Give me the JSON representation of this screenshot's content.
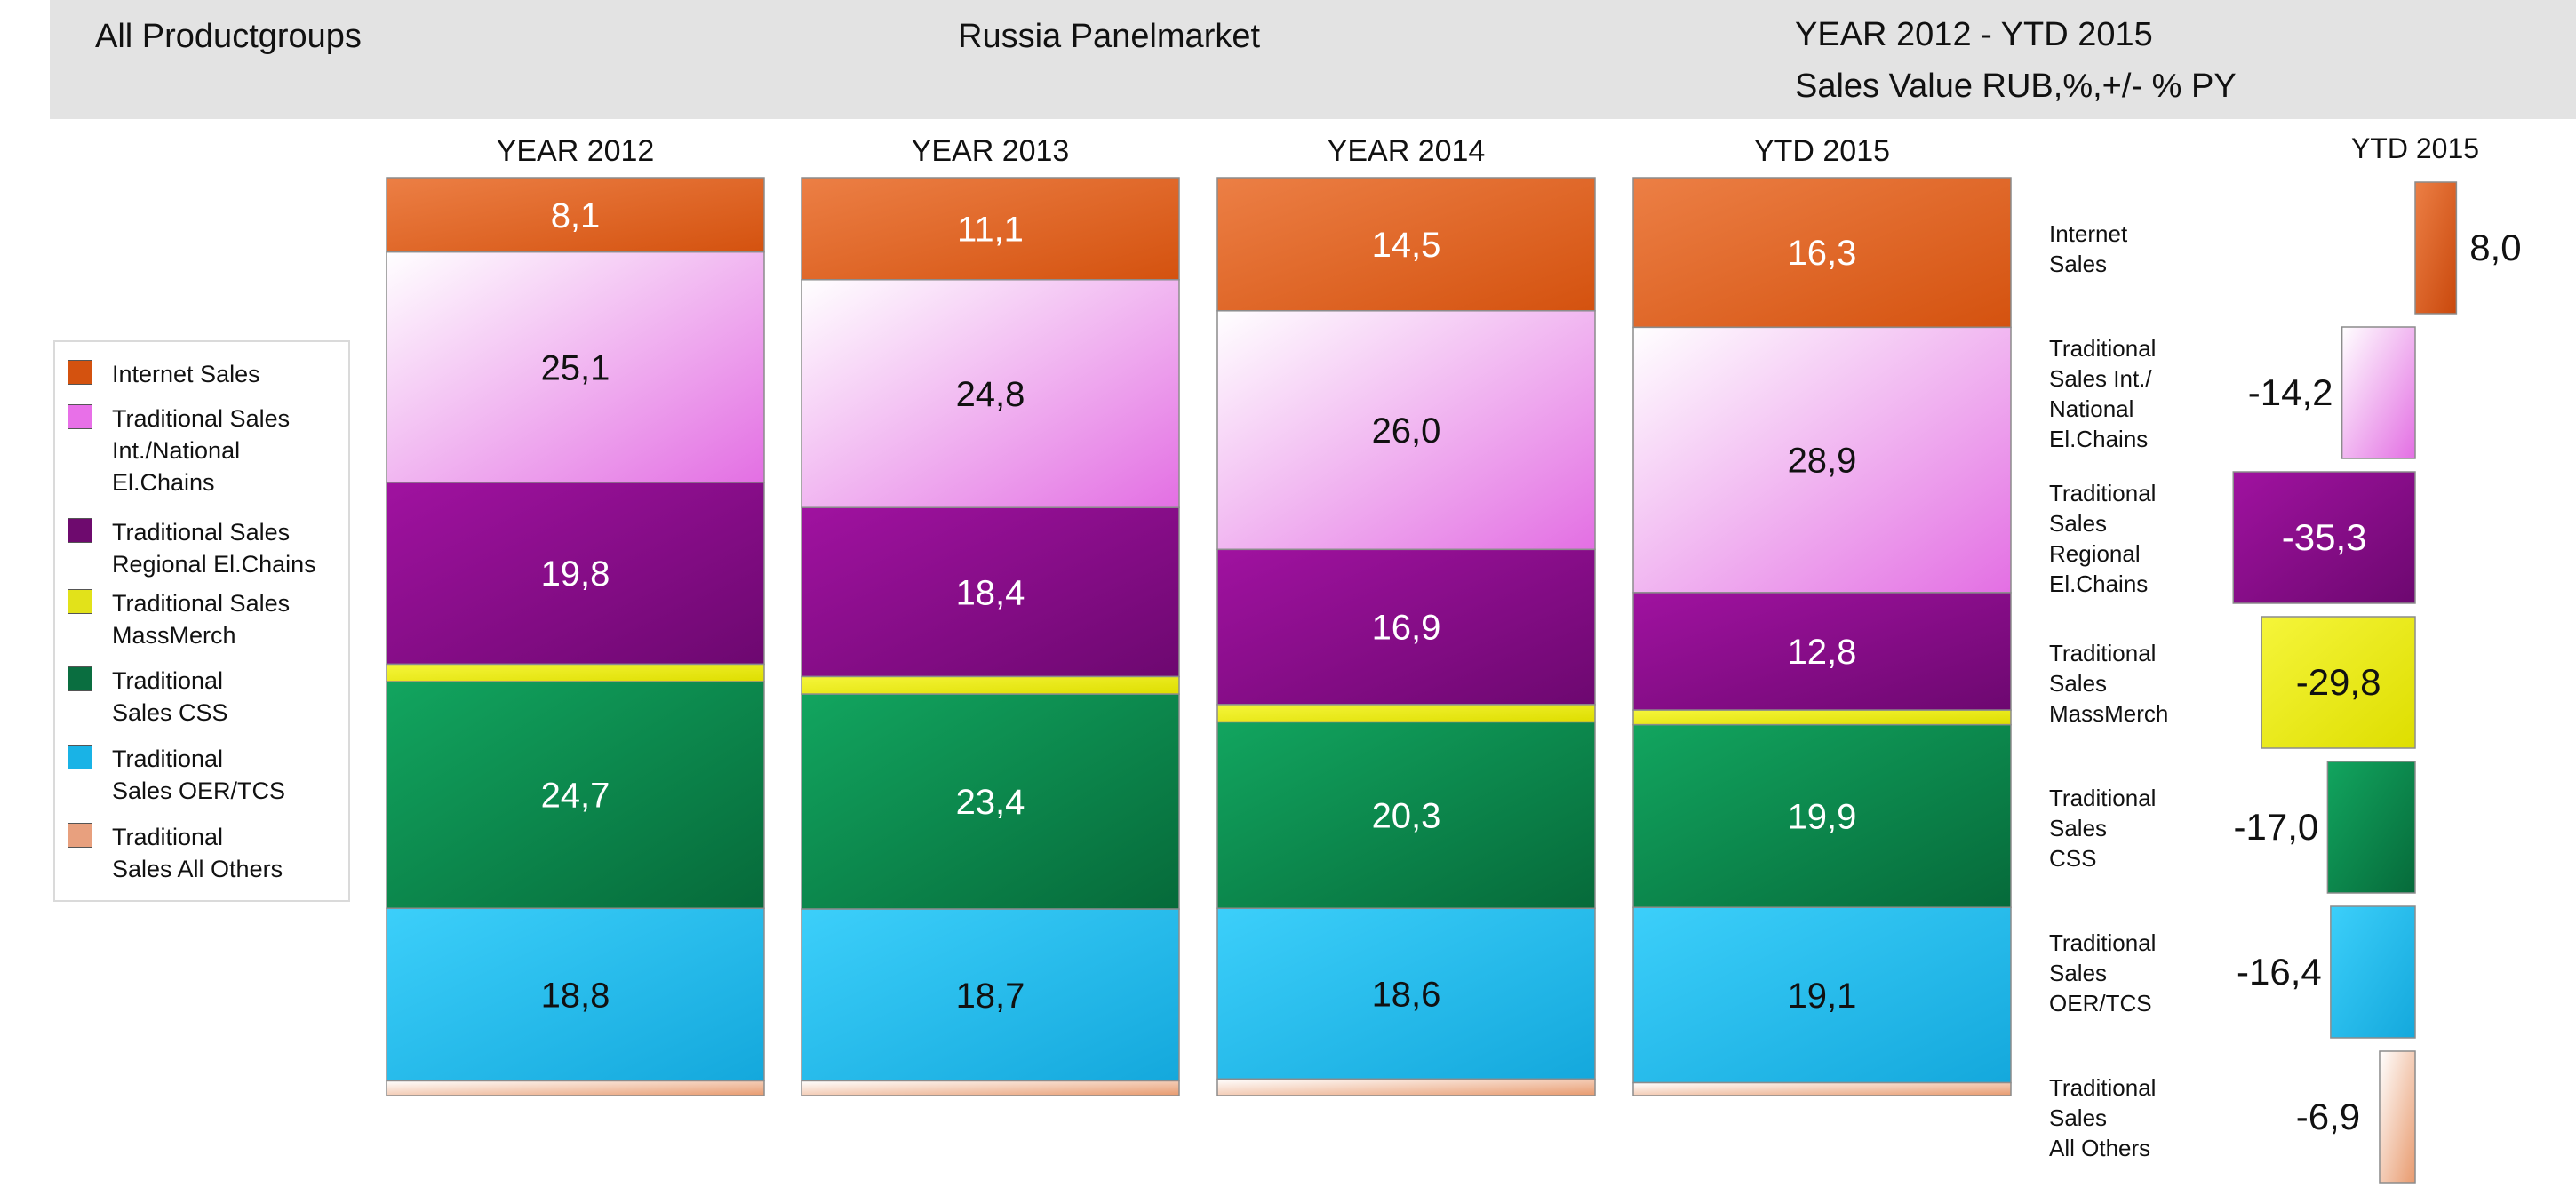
{
  "header": {
    "left_title": "All Productgroups",
    "center_title": "Russia Panelmarket",
    "right_title_line1": "YEAR 2012 - YTD 2015",
    "right_title_line2": "Sales Value RUB,%,+/- % PY"
  },
  "chart_data": {
    "type": "bar",
    "stacked": true,
    "title": "Russia Panelmarket",
    "subtitle": "Sales Value RUB,%,+/- % PY",
    "categories": [
      "YEAR 2012",
      "YEAR 2013",
      "YEAR 2014",
      "YTD 2015"
    ],
    "ylim": [
      0,
      100
    ],
    "legend_position": "left",
    "series": [
      {
        "name": "Internet Sales",
        "labels": [
          "8,1",
          "11,1",
          "14,5",
          "16,3"
        ],
        "values": [
          8.1,
          11.1,
          14.5,
          16.3
        ],
        "color": "#d85a1e",
        "gradient": [
          "#ec7f45",
          "#d4520f"
        ],
        "label_color": "#ffffff"
      },
      {
        "name": "Traditional Sales Int./National El.Chains",
        "labels": [
          "25,1",
          "24,8",
          "26,0",
          "28,9"
        ],
        "values": [
          25.1,
          24.8,
          26.0,
          28.9
        ],
        "color": "#e880e8",
        "gradient": [
          "#ffffff",
          "#e36fe3"
        ],
        "label_color": "#111111"
      },
      {
        "name": "Traditional Sales Regional El.Chains",
        "labels": [
          "19,8",
          "18,4",
          "16,9",
          "12,8"
        ],
        "values": [
          19.8,
          18.4,
          16.9,
          12.8
        ],
        "color": "#8a0d8a",
        "gradient": [
          "#a012a0",
          "#6d0870"
        ],
        "label_color": "#ffffff"
      },
      {
        "name": "Traditional Sales MassMerch",
        "labels": [
          "",
          "",
          "",
          ""
        ],
        "values": [
          1.9,
          1.9,
          1.9,
          1.6
        ],
        "color": "#e8e816",
        "gradient": [
          "#f5f53a",
          "#dede00"
        ],
        "label_color": "#111111"
      },
      {
        "name": "Traditional Sales CSS",
        "labels": [
          "24,7",
          "23,4",
          "20,3",
          "19,9"
        ],
        "values": [
          24.7,
          23.4,
          20.3,
          19.9
        ],
        "color": "#0b8a4e",
        "gradient": [
          "#12a55f",
          "#066a3a"
        ],
        "label_color": "#ffffff"
      },
      {
        "name": "Traditional Sales OER/TCS",
        "labels": [
          "18,8",
          "18,7",
          "18,6",
          "19,1"
        ],
        "values": [
          18.8,
          18.7,
          18.6,
          19.1
        ],
        "color": "#22bde8",
        "gradient": [
          "#3ccffa",
          "#14a8dc"
        ],
        "label_color": "#111111"
      },
      {
        "name": "Traditional Sales All Others",
        "labels": [
          "",
          "",
          "",
          ""
        ],
        "values": [
          1.6,
          1.6,
          1.8,
          1.4
        ],
        "color": "#e6a07a",
        "gradient": [
          "#ffffff",
          "#e89a6e"
        ],
        "label_color": "#111111"
      }
    ],
    "legend": [
      {
        "label": "Internet Sales",
        "color": "#d4520f"
      },
      {
        "label": "Traditional Sales\nInt./National\nEl.Chains",
        "color": "#e870e8"
      },
      {
        "label": "Traditional Sales\nRegional El.Chains",
        "color": "#6e0a6e"
      },
      {
        "label": "Traditional Sales\nMassMerch",
        "color": "#e2e21a"
      },
      {
        "label": "Traditional\nSales CSS",
        "color": "#0a6e40"
      },
      {
        "label": "Traditional\nSales OER/TCS",
        "color": "#19b3e6"
      },
      {
        "label": "Traditional\nSales All Others",
        "color": "#e8a07e"
      }
    ],
    "change_chart": {
      "title": "YTD 2015",
      "unit": "+/- % PY",
      "xlim": [
        -40,
        10
      ],
      "rows": [
        {
          "label": "Internet\nSales",
          "value": 8.0,
          "value_label": "8,0",
          "label_inside": false,
          "value_color": "#111111",
          "gradient": [
            "#ec7f45",
            "#c9480c"
          ]
        },
        {
          "label": "Traditional\nSales Int./\nNational\nEl.Chains",
          "value": -14.2,
          "value_label": "-14,2",
          "label_inside": false,
          "value_color": "#111111",
          "gradient": [
            "#ffffff",
            "#e36fe3"
          ]
        },
        {
          "label": "Traditional\nSales\nRegional\nEl.Chains",
          "value": -35.3,
          "value_label": "-35,3",
          "label_inside": true,
          "value_color": "#ffffff",
          "gradient": [
            "#a012a0",
            "#6d0870"
          ]
        },
        {
          "label": "Traditional\nSales\nMassMerch",
          "value": -29.8,
          "value_label": "-29,8",
          "label_inside": true,
          "value_color": "#111111",
          "gradient": [
            "#f5f53a",
            "#dede00"
          ]
        },
        {
          "label": "Traditional\nSales\nCSS",
          "value": -17.0,
          "value_label": "-17,0",
          "label_inside": false,
          "value_color": "#111111",
          "gradient": [
            "#12a55f",
            "#066a3a"
          ]
        },
        {
          "label": "Traditional\nSales\nOER/TCS",
          "value": -16.4,
          "value_label": "-16,4",
          "label_inside": false,
          "value_color": "#111111",
          "gradient": [
            "#3ccffa",
            "#14a8dc"
          ]
        },
        {
          "label": "Traditional\nSales\nAll Others",
          "value": -6.9,
          "value_label": "-6,9",
          "label_inside": false,
          "value_color": "#111111",
          "gradient": [
            "#ffffff",
            "#e89a6e"
          ]
        }
      ]
    }
  }
}
